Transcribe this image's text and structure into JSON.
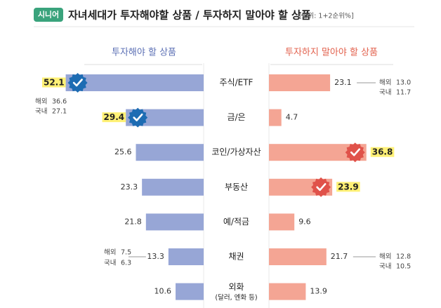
{
  "chart_data": {
    "type": "butterfly-bar",
    "badge": "시니어",
    "title": "자녀세대가 투자해야할 상품 / 투자하지 말아야 할 상품",
    "subtitle": "[단위: 1+2순위%]",
    "categories": [
      "주식/ETF",
      "금/은",
      "코인/가상자산",
      "부동산",
      "예/적금",
      "채권",
      "외화"
    ],
    "category_sublabels": [
      null,
      null,
      null,
      null,
      null,
      null,
      "(달러, 엔화 등)"
    ],
    "series": [
      {
        "name": "투자해야 할 상품",
        "color": "#97a6d6",
        "label_color": "#5b6fb4",
        "side": "left",
        "values": [
          52.1,
          29.4,
          25.6,
          23.3,
          21.8,
          13.3,
          10.6
        ],
        "highlight": [
          0,
          1
        ],
        "highlight_color": "#1d6cb3"
      },
      {
        "name": "투자하지 말아야 할 상품",
        "color": "#f4a594",
        "label_color": "#e2604c",
        "side": "right",
        "values": [
          23.1,
          4.7,
          36.8,
          23.9,
          9.6,
          21.7,
          13.9
        ],
        "highlight": [
          2,
          3
        ],
        "highlight_color": "#e0524a"
      }
    ],
    "breakdowns": [
      {
        "series": 0,
        "index": 0,
        "items": [
          {
            "name": "해외",
            "value": 36.6
          },
          {
            "name": "국내",
            "value": 27.1
          }
        ]
      },
      {
        "series": 0,
        "index": 5,
        "items": [
          {
            "name": "해외",
            "value": 7.5
          },
          {
            "name": "국내",
            "value": 6.3
          }
        ]
      },
      {
        "series": 1,
        "index": 0,
        "items": [
          {
            "name": "해외",
            "value": 13.0,
            "label": "13.0"
          },
          {
            "name": "국내",
            "value": 11.7
          }
        ]
      },
      {
        "series": 1,
        "index": 5,
        "items": [
          {
            "name": "해외",
            "value": 12.8
          },
          {
            "name": "국내",
            "value": 10.5
          }
        ]
      }
    ]
  }
}
